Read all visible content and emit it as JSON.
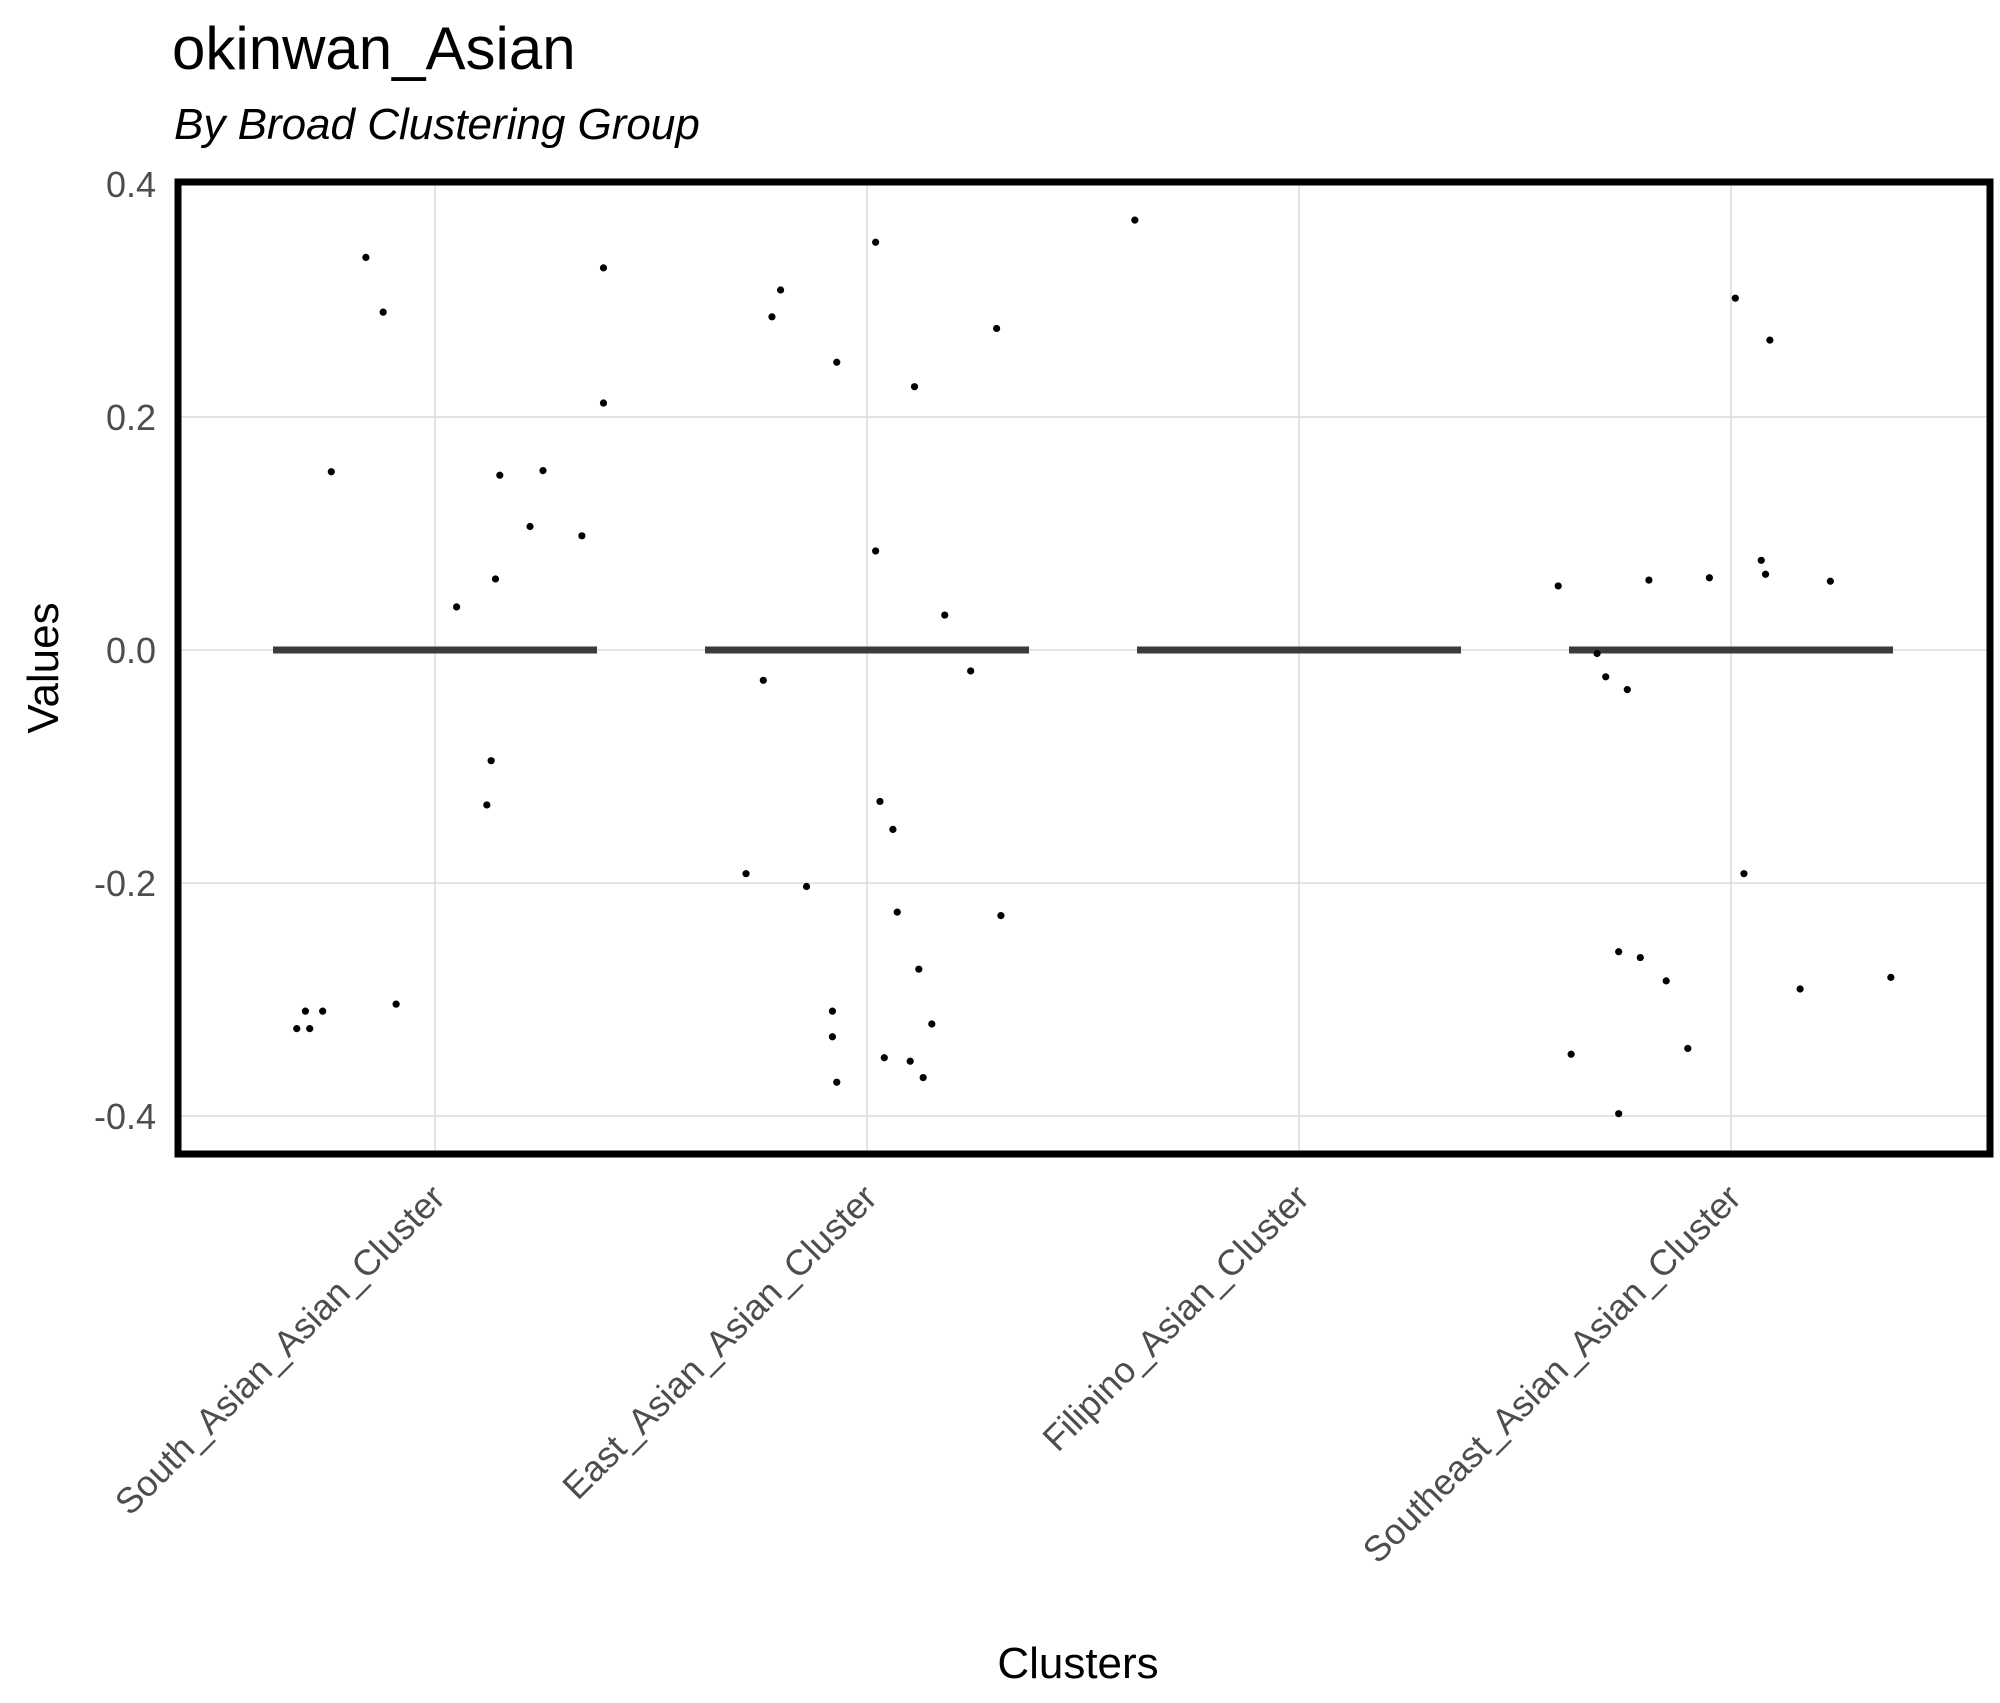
{
  "chart_data": {
    "type": "scatter",
    "title": "okinwan_Asian",
    "subtitle": "By Broad Clustering Group",
    "xlabel": "Clusters",
    "ylabel": "Values",
    "ylim": [
      -0.43,
      0.4
    ],
    "yticks": [
      "0.4",
      "0.2",
      "0.0",
      "-0.2",
      "-0.4"
    ],
    "ytick_values": [
      0.4,
      0.2,
      0.0,
      -0.2,
      -0.4
    ],
    "categories": [
      "South_Asian_Asian_Cluster",
      "East_Asian_Asian_Cluster",
      "Filipino_Asian_Cluster",
      "Southeast_Asian_Asian_Cluster"
    ],
    "grid": true,
    "median_lines": [
      0.0,
      0.0,
      0.0,
      0.0
    ],
    "points": [
      {
        "category": "South_Asian_Asian_Cluster",
        "jitter": [
          -0.32,
          -0.26,
          -0.09,
          -0.16,
          -0.12,
          0.05,
          0.12,
          0.14,
          0.15,
          0.22,
          0.13,
          0.25,
          0.34,
          0.39,
          0.39,
          -0.24,
          -0.3,
          -0.29
        ],
        "values": [
          -0.325,
          -0.31,
          -0.304,
          0.337,
          0.29,
          0.037,
          -0.133,
          0.061,
          0.15,
          0.106,
          -0.095,
          0.154,
          0.098,
          0.212,
          0.328,
          0.153,
          -0.31,
          -0.325
        ]
      },
      {
        "category": "East_Asian_Asian_Cluster",
        "jitter": [
          -0.28,
          -0.24,
          -0.2,
          -0.14,
          -0.08,
          -0.08,
          -0.07,
          -0.07,
          0.02,
          0.02,
          0.03,
          0.04,
          0.06,
          0.1,
          0.11,
          0.12,
          0.15,
          0.18,
          0.24,
          0.3,
          0.31,
          -0.22,
          0.13,
          0.07
        ],
        "values": [
          -0.192,
          -0.026,
          0.309,
          -0.203,
          -0.31,
          -0.332,
          0.247,
          -0.371,
          0.35,
          0.085,
          -0.13,
          -0.35,
          -0.154,
          -0.353,
          0.226,
          -0.274,
          -0.321,
          0.03,
          -0.018,
          0.276,
          -0.228,
          0.286,
          -0.367,
          -0.225
        ]
      },
      {
        "category": "Filipino_Asian_Cluster",
        "jitter": [
          -0.38
        ],
        "values": [
          0.369
        ]
      },
      {
        "category": "Southeast_Asian_Asian_Cluster",
        "jitter": [
          -0.4,
          -0.37,
          -0.31,
          -0.29,
          -0.26,
          -0.24,
          -0.21,
          -0.19,
          -0.15,
          -0.1,
          -0.05,
          0.01,
          0.03,
          0.07,
          0.08,
          0.09,
          0.16,
          0.23,
          0.37,
          -0.26
        ],
        "values": [
          0.055,
          -0.347,
          -0.003,
          -0.023,
          -0.398,
          -0.034,
          -0.264,
          0.06,
          -0.284,
          -0.342,
          0.062,
          0.302,
          -0.192,
          0.077,
          0.065,
          0.266,
          -0.291,
          0.059,
          -0.281,
          -0.259
        ]
      }
    ]
  }
}
